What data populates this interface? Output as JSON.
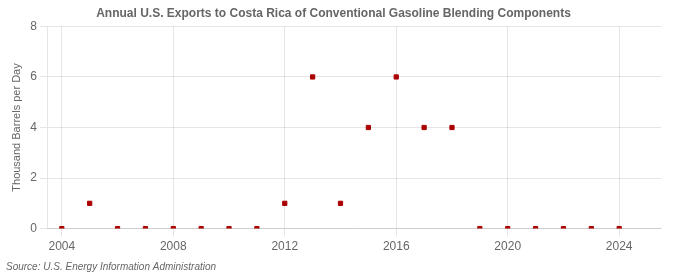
{
  "chart_data": {
    "type": "scatter",
    "title": "Annual U.S. Exports to Costa Rica of Conventional Gasoline Blending Components",
    "ylabel": "Thousand Barrels per Day",
    "annotations": [
      "Source: U.S. Energy Information Administration"
    ],
    "x": [
      2004,
      2005,
      2006,
      2007,
      2008,
      2009,
      2010,
      2011,
      2012,
      2013,
      2014,
      2015,
      2016,
      2017,
      2018,
      2019,
      2020,
      2021,
      2022,
      2023,
      2024
    ],
    "values": [
      0,
      1,
      0,
      0,
      0,
      0,
      0,
      0,
      1,
      6,
      1,
      4,
      6,
      4,
      4,
      0,
      0,
      0,
      0,
      0,
      0
    ],
    "color": "#aa0000",
    "marker": "square",
    "xlim": [
      2003.5,
      2025.5
    ],
    "xticks": [
      2004,
      2008,
      2012,
      2016,
      2020,
      2024
    ],
    "ylim": [
      0,
      8
    ],
    "yticks": [
      0,
      2,
      4,
      6,
      8
    ],
    "grid": true
  }
}
